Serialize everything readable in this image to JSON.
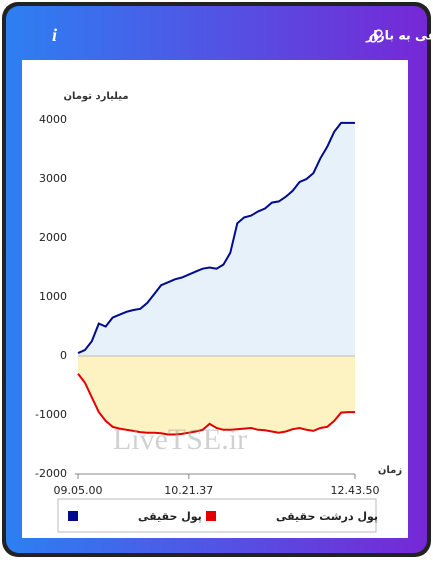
{
  "chart_data": {
    "type": "area-line",
    "title": "برآیند ورود و خروج پول حقیقی و پول درشت حقیقی به بازار",
    "ylabel": "میلیارد تومان",
    "xlabel": "زمان",
    "watermark": "LiveTSE.ir",
    "categories": [
      "09.05.00",
      null,
      null,
      null,
      null,
      null,
      null,
      null,
      null,
      null,
      null,
      null,
      null,
      null,
      null,
      null,
      "10.21.37",
      null,
      null,
      null,
      null,
      null,
      null,
      null,
      null,
      null,
      null,
      null,
      null,
      null,
      null,
      null,
      null,
      null,
      null,
      null,
      null,
      null,
      null,
      null,
      "12.43.50"
    ],
    "series": [
      {
        "name": "پول حقیقی",
        "color": "#000c8c",
        "fill": "#e6f1fa",
        "values": [
          50,
          100,
          250,
          550,
          500,
          650,
          700,
          750,
          780,
          800,
          900,
          1050,
          1200,
          1250,
          1300,
          1330,
          1380,
          1430,
          1480,
          1500,
          1480,
          1550,
          1750,
          2250,
          2350,
          2380,
          2450,
          2500,
          2600,
          2620,
          2700,
          2800,
          2950,
          3000,
          3100,
          3350,
          3550,
          3800,
          3950,
          3950,
          3950
        ]
      },
      {
        "name": "پول درشت حقیقی",
        "color": "#e40000",
        "fill": "#fdf3c2",
        "values": [
          -300,
          -450,
          -700,
          -950,
          -1100,
          -1200,
          -1230,
          -1250,
          -1270,
          -1290,
          -1300,
          -1300,
          -1310,
          -1330,
          -1330,
          -1320,
          -1300,
          -1280,
          -1250,
          -1150,
          -1220,
          -1250,
          -1250,
          -1240,
          -1230,
          -1220,
          -1250,
          -1260,
          -1280,
          -1300,
          -1280,
          -1240,
          -1220,
          -1250,
          -1270,
          -1220,
          -1200,
          -1100,
          -960,
          -950,
          -950
        ]
      }
    ],
    "ylim": [
      -2000,
      4000
    ],
    "yticks": [
      -2000,
      -1000,
      0,
      1000,
      2000,
      3000,
      4000
    ],
    "grid": false
  }
}
